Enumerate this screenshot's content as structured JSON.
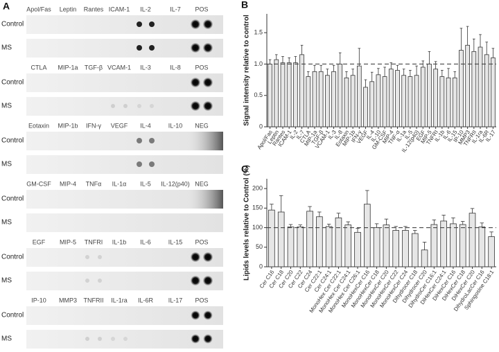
{
  "blot": {
    "label": "A",
    "blocks": [
      {
        "analytes": [
          "Apol/Fas",
          "Leptin",
          "Rantes",
          "ICAM-1",
          "IL-2",
          "IL-7",
          "POS"
        ],
        "rows": [
          "Control",
          "MS"
        ]
      },
      {
        "analytes": [
          "CTLA",
          "MIP-1a",
          "TGF-β",
          "VCAM-1",
          "IL-3",
          "IL-8",
          "POS"
        ],
        "rows": [
          "Control",
          "MS"
        ]
      },
      {
        "analytes": [
          "Eotaxin",
          "MIP-1b",
          "IFN-γ",
          "VEGF",
          "IL-4",
          "IL-10",
          "NEG"
        ],
        "rows": [
          "Control",
          "MS"
        ]
      },
      {
        "analytes": [
          "GM-CSF",
          "MIP-4",
          "TNFα",
          "IL-1α",
          "IL-5",
          "IL-12(p40)",
          "NEG"
        ],
        "rows": [
          "Control",
          "MS"
        ]
      },
      {
        "analytes": [
          "EGF",
          "MIP-5",
          "TNFRI",
          "IL-1b",
          "IL-6",
          "IL-15",
          "POS"
        ],
        "rows": [
          "Control",
          "MS"
        ]
      },
      {
        "analytes": [
          "IP-10",
          "MMP3",
          "TNFRII",
          "IL-1ra",
          "IL-6R",
          "IL-17",
          "POS"
        ],
        "rows": [
          "Control",
          "MS"
        ]
      }
    ]
  },
  "chart_data": [
    {
      "type": "bar",
      "panel_label": "B",
      "ylabel": "Signal intensity relative to control",
      "categories": [
        "Apol/Fas",
        "Leptin",
        "Rantes",
        "ICAM-1",
        "IL-2",
        "IL-7",
        "CTLA",
        "MIP-1a",
        "TGF-β",
        "VCAM-1",
        "IL-3",
        "IL-8",
        "Eotaxin",
        "MIP-1b",
        "IFN-γ",
        "VEGF",
        "IL-4",
        "IL-10",
        "GM-CSF",
        "MIP-4",
        "TNF-α",
        "IL-1a",
        "IL-5",
        "IL-12(p40)",
        "EGF",
        "MIP-5",
        "TNFRI",
        "IL-1b",
        "IL-6",
        "IL-15",
        "IP-10",
        "MMP3",
        "TNFRII",
        "IL-1ra",
        "IL-6R",
        "IL-17"
      ],
      "values": [
        1.0,
        1.07,
        1.02,
        1.02,
        1.02,
        1.15,
        0.8,
        0.88,
        0.88,
        0.82,
        0.88,
        1.0,
        0.78,
        0.82,
        0.97,
        0.63,
        0.72,
        0.83,
        0.8,
        0.92,
        0.9,
        0.82,
        0.8,
        0.82,
        0.95,
        1.0,
        0.92,
        0.8,
        0.78,
        0.78,
        1.22,
        1.3,
        1.2,
        1.27,
        1.15,
        1.1
      ],
      "errors": [
        0.07,
        0.08,
        0.1,
        0.08,
        0.1,
        0.15,
        0.08,
        0.1,
        0.1,
        0.1,
        0.1,
        0.18,
        0.1,
        0.1,
        0.28,
        0.12,
        0.15,
        0.1,
        0.15,
        0.1,
        0.08,
        0.1,
        0.1,
        0.15,
        0.1,
        0.2,
        0.12,
        0.1,
        0.15,
        0.1,
        0.35,
        0.3,
        0.2,
        0.2,
        0.2,
        0.15
      ],
      "color": "#e6e6e6",
      "ylim": [
        0,
        1.8
      ],
      "yticks": [
        0,
        0.5,
        {
          "value": 1,
          "label": "1.0"
        },
        1.5
      ],
      "reference_line": 1
    },
    {
      "type": "bar",
      "panel_label": "C",
      "ylabel": "Lipids levels relative to Control (%)",
      "categories": [
        "Cer C16",
        "Cer C18",
        "Cer C20",
        "Cer C22",
        "Cer C24",
        "Cer C22:1",
        "Cer C24:1",
        "MonoHex Cer C22:1",
        "MonoHex Cer C24:1",
        "MonoHex Cer C26:1",
        "MonoHexCer C16",
        "MonoHexCer C18",
        "MonoHexCer C20",
        "MonoHexCer C22",
        "MonoHexCer C24",
        "Dihydrocer C18",
        "Dihydrocer C20",
        "DihydroCer C16:1",
        "DiHexCer C24:1",
        "DiHexCer C16",
        "DiHexCer C18",
        "DiHexCer C20",
        "DihydroLacCer C16",
        "Sphingosine C18:1"
      ],
      "values": [
        145,
        140,
        102,
        102,
        142,
        128,
        103,
        125,
        107,
        88,
        160,
        100,
        107,
        93,
        93,
        85,
        43,
        108,
        117,
        110,
        108,
        137,
        102,
        77
      ],
      "errors": [
        15,
        42,
        6,
        5,
        12,
        12,
        6,
        12,
        8,
        10,
        35,
        10,
        15,
        10,
        10,
        8,
        20,
        12,
        15,
        15,
        8,
        12,
        10,
        12
      ],
      "color": "#e6e6e6",
      "ylim": [
        0,
        225
      ],
      "yticks": [
        0,
        50,
        100,
        150,
        200
      ],
      "reference_line": 100
    }
  ]
}
